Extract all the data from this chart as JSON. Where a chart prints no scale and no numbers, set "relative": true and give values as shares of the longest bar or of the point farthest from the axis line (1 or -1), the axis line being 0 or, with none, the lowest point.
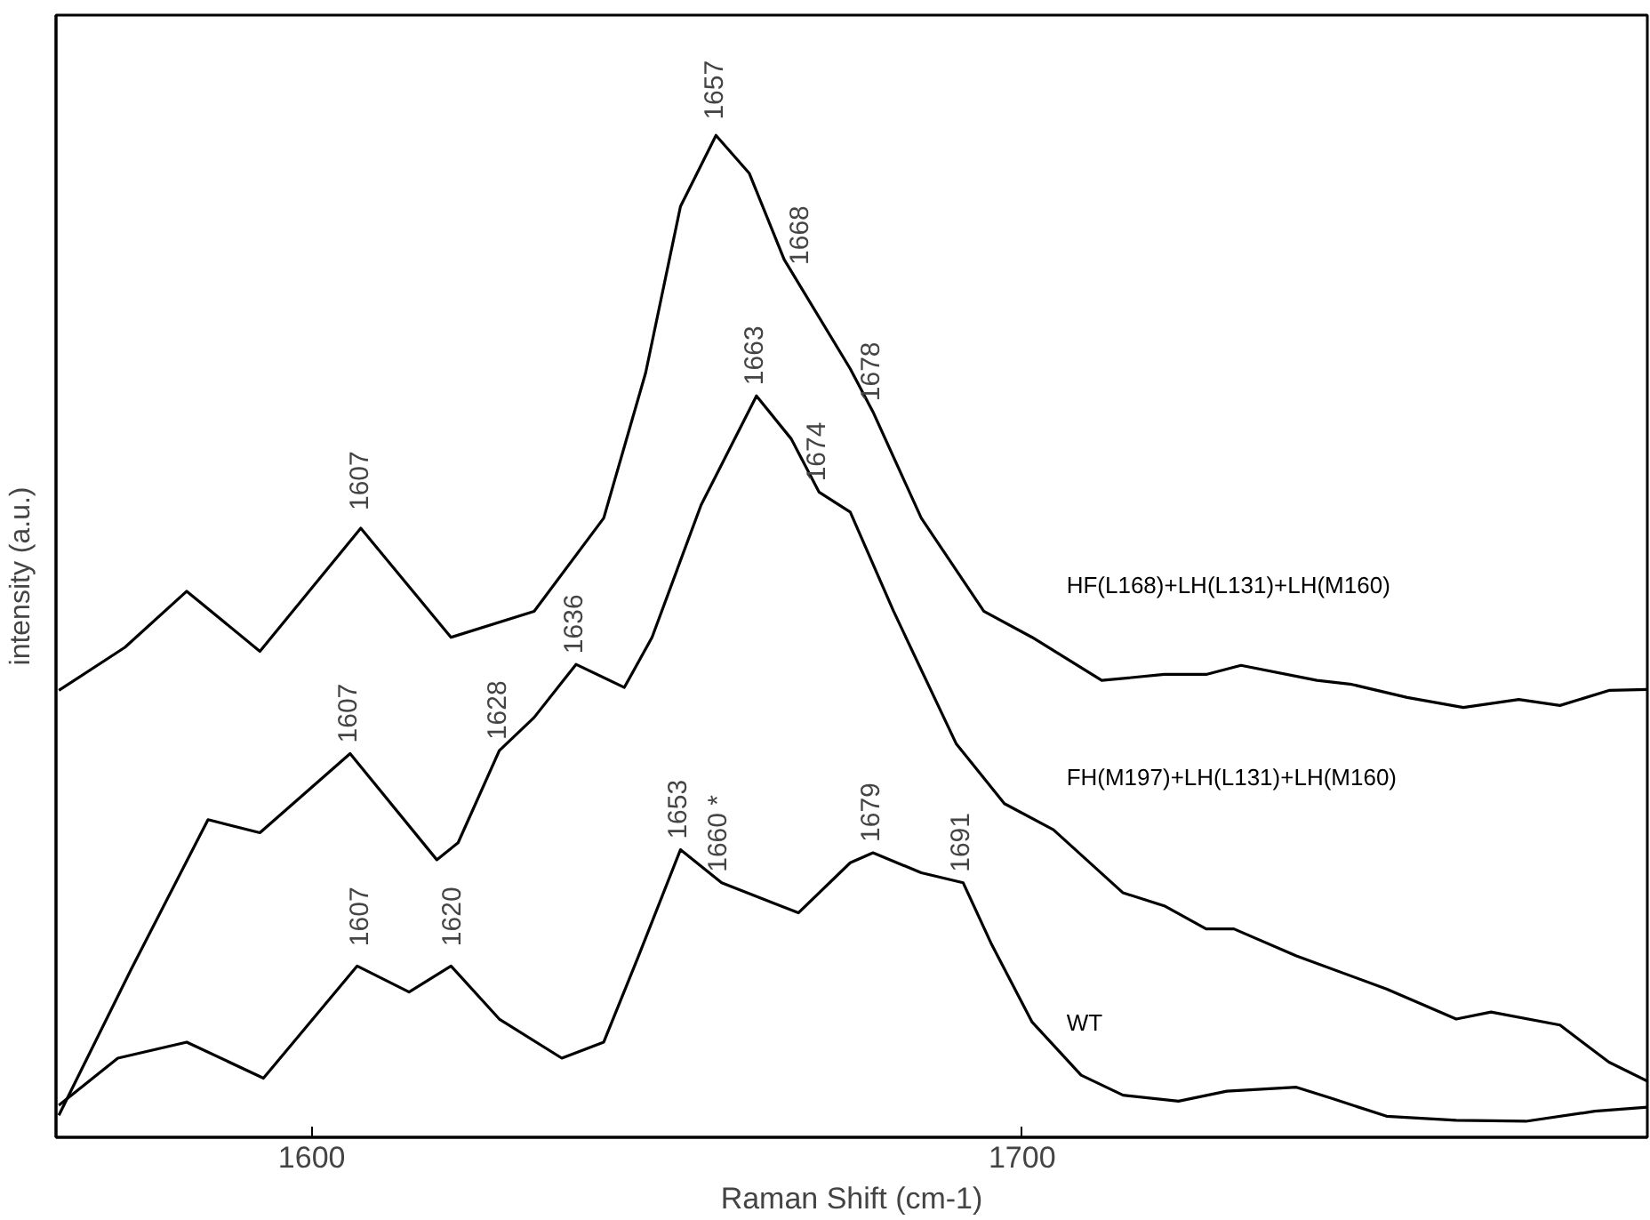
{
  "chart_data": {
    "type": "line",
    "relative": true,
    "xlabel": "Raman Shift (cm-1)",
    "ylabel": "intensity (a.u.)",
    "xlim": [
      1564,
      1788
    ],
    "xticks": [
      1600,
      1700
    ],
    "grid": false,
    "marker": "none",
    "line_style": "solid",
    "series": [
      {
        "name": "HF(L168)+LH(L131)+LH(M160)",
        "color": "#000000",
        "x": [
          1564.4,
          1573.7,
          1582.4,
          1592.7,
          1606.9,
          1619.6,
          1631.3,
          1641.1,
          1647.0,
          1651.9,
          1656.9,
          1661.6,
          1666.5,
          1675.8,
          1679.0,
          1685.8,
          1694.6,
          1701.4,
          1711.2,
          1720.0,
          1725.9,
          1730.8,
          1741.5,
          1746.4,
          1754.2,
          1762.1,
          1769.9,
          1775.7,
          1782.6,
          1788.0
        ],
        "values": [
          0.446,
          0.489,
          0.545,
          0.485,
          0.608,
          0.499,
          0.525,
          0.618,
          0.763,
          0.929,
          1.0,
          0.962,
          0.876,
          0.767,
          0.724,
          0.618,
          0.525,
          0.499,
          0.456,
          0.462,
          0.462,
          0.471,
          0.456,
          0.452,
          0.439,
          0.429,
          0.437,
          0.431,
          0.446,
          0.447
        ]
      },
      {
        "name": "FH(M197)+LH(L131)+LH(M160)",
        "color": "#000000",
        "x": [
          1564.4,
          1574.6,
          1585.4,
          1592.7,
          1605.4,
          1617.6,
          1620.6,
          1626.4,
          1631.3,
          1637.2,
          1644.0,
          1647.9,
          1654.8,
          1662.6,
          1667.5,
          1671.4,
          1675.8,
          1681.9,
          1690.7,
          1697.5,
          1704.4,
          1714.2,
          1720.0,
          1725.9,
          1729.8,
          1738.6,
          1751.3,
          1761.1,
          1766.0,
          1775.7,
          1782.6,
          1788.0
        ],
        "values": [
          0.022,
          0.168,
          0.317,
          0.304,
          0.383,
          0.277,
          0.294,
          0.386,
          0.419,
          0.472,
          0.449,
          0.499,
          0.631,
          0.74,
          0.697,
          0.644,
          0.624,
          0.525,
          0.393,
          0.333,
          0.307,
          0.244,
          0.231,
          0.208,
          0.208,
          0.181,
          0.148,
          0.118,
          0.125,
          0.112,
          0.075,
          0.056
        ]
      },
      {
        "name": "WT",
        "color": "#000000",
        "x": [
          1564.4,
          1572.7,
          1582.4,
          1593.2,
          1606.4,
          1613.7,
          1619.6,
          1626.4,
          1635.2,
          1641.1,
          1646.0,
          1651.9,
          1657.7,
          1668.5,
          1675.8,
          1679.0,
          1685.8,
          1691.7,
          1695.6,
          1701.4,
          1708.3,
          1714.2,
          1722.0,
          1728.8,
          1738.6,
          1743.5,
          1751.3,
          1761.1,
          1770.9,
          1780.6,
          1788.0
        ],
        "values": [
          0.032,
          0.079,
          0.095,
          0.059,
          0.171,
          0.145,
          0.171,
          0.118,
          0.079,
          0.095,
          0.181,
          0.287,
          0.254,
          0.224,
          0.274,
          0.284,
          0.264,
          0.254,
          0.194,
          0.115,
          0.062,
          0.042,
          0.036,
          0.046,
          0.05,
          0.039,
          0.021,
          0.017,
          0.016,
          0.026,
          0.03
        ]
      }
    ],
    "annotations": [
      {
        "text": "1607",
        "x": 1607,
        "y": 0.615
      },
      {
        "text": "1657",
        "x": 1657,
        "y": 1.005
      },
      {
        "text": "1668",
        "x": 1669,
        "y": 0.86
      },
      {
        "text": "1678",
        "x": 1679.0,
        "y": 0.724
      },
      {
        "text": "1607",
        "x": 1605.4,
        "y": 0.383
      },
      {
        "text": "1636",
        "x": 1637.2,
        "y": 0.472
      },
      {
        "text": "1628",
        "x": 1626.4,
        "y": 0.386
      },
      {
        "text": "1663",
        "x": 1662.6,
        "y": 0.74
      },
      {
        "text": "1674",
        "x": 1671.4,
        "y": 0.644
      },
      {
        "text": "1607",
        "x": 1607,
        "y": 0.18
      },
      {
        "text": "1620",
        "x": 1620,
        "y": 0.18
      },
      {
        "text": "1653",
        "x": 1651.9,
        "y": 0.287
      },
      {
        "text": "1660 *",
        "x": 1657.7,
        "y": 0.254
      },
      {
        "text": "1679",
        "x": 1679.0,
        "y": 0.284
      },
      {
        "text": "1691",
        "x": 1691.7,
        "y": 0.254
      }
    ]
  }
}
